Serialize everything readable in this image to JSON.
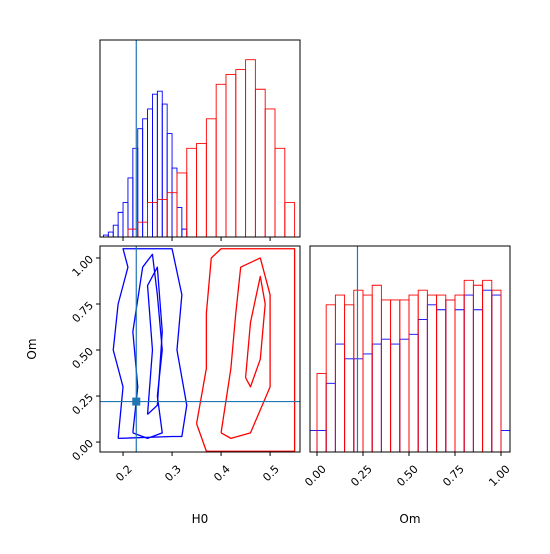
{
  "chart_data": [
    {
      "type": "histogram",
      "xlim": [
        0.153,
        0.561
      ],
      "ylim": [
        0,
        200
      ],
      "xticks": [
        0.2,
        0.3,
        0.4,
        0.5
      ],
      "truth": 0.227,
      "truth_color": "#1f77b4",
      "series": [
        {
          "color": "#0000ff",
          "bins": [
            0.16,
            0.17,
            0.18,
            0.19,
            0.2,
            0.21,
            0.22,
            0.23,
            0.24,
            0.25,
            0.26,
            0.27,
            0.28,
            0.29,
            0.3,
            0.31,
            0.32,
            0.33
          ],
          "values": [
            2,
            5,
            12,
            25,
            35,
            60,
            90,
            110,
            120,
            130,
            145,
            148,
            135,
            105,
            70,
            30,
            8
          ]
        },
        {
          "color": "#ff0000",
          "bins": [
            0.21,
            0.23,
            0.25,
            0.27,
            0.29,
            0.31,
            0.33,
            0.35,
            0.37,
            0.39,
            0.41,
            0.43,
            0.45,
            0.47,
            0.49,
            0.51,
            0.53,
            0.55
          ],
          "values": [
            8,
            15,
            35,
            38,
            45,
            65,
            90,
            95,
            120,
            155,
            165,
            170,
            180,
            150,
            130,
            90,
            35
          ]
        }
      ]
    },
    {
      "type": "contour",
      "xlabel": "H0",
      "ylabel": "Om",
      "xlim": [
        0.153,
        0.561
      ],
      "ylim": [
        -0.054,
        1.065
      ],
      "xticks": [
        0.2,
        0.3,
        0.4,
        0.5
      ],
      "yticks": [
        {
          "value": 0,
          "label": "0.00"
        },
        {
          "value": 0.25,
          "label": "0.25"
        },
        {
          "value": 0.5,
          "label": "0.50"
        },
        {
          "value": 0.75,
          "label": "0.75"
        },
        {
          "value": 1,
          "label": "1.00"
        }
      ],
      "truth_x": 0.227,
      "truth_y": 0.22,
      "truth_color": "#1f77b4",
      "contours": [
        {
          "color": "#0000ff",
          "x": [
            0.19,
            0.2,
            0.18,
            0.19,
            0.21,
            0.2,
            0.23,
            0.3,
            0.32,
            0.31,
            0.33,
            0.32,
            0.3,
            0.19
          ],
          "values": [
            0.02,
            0.3,
            0.5,
            0.75,
            0.95,
            1.05,
            1.05,
            1.05,
            0.8,
            0.5,
            0.2,
            0.03,
            0.03,
            0.02
          ]
        },
        {
          "color": "#0000ff",
          "x": [
            0.22,
            0.23,
            0.22,
            0.24,
            0.26,
            0.27,
            0.28,
            0.27,
            0.28,
            0.25,
            0.22
          ],
          "values": [
            0.05,
            0.3,
            0.6,
            0.95,
            1.02,
            0.8,
            0.5,
            0.25,
            0.05,
            0.02,
            0.05
          ]
        },
        {
          "color": "#0000ff",
          "x": [
            0.25,
            0.26,
            0.25,
            0.27,
            0.28,
            0.27,
            0.25
          ],
          "values": [
            0.15,
            0.5,
            0.85,
            0.95,
            0.6,
            0.2,
            0.15
          ]
        },
        {
          "color": "#ff0000",
          "x": [
            0.35,
            0.37,
            0.37,
            0.38,
            0.4,
            0.55,
            0.55,
            0.47,
            0.37,
            0.35
          ],
          "values": [
            0.1,
            0.4,
            0.7,
            1.0,
            1.05,
            1.05,
            -0.05,
            -0.05,
            -0.05,
            0.1
          ]
        },
        {
          "color": "#ff0000",
          "x": [
            0.4,
            0.42,
            0.43,
            0.44,
            0.48,
            0.5,
            0.5,
            0.46,
            0.42,
            0.4
          ],
          "values": [
            0.05,
            0.4,
            0.7,
            0.95,
            1.0,
            0.8,
            0.3,
            0.05,
            0.02,
            0.05
          ]
        },
        {
          "color": "#ff0000",
          "x": [
            0.45,
            0.46,
            0.48,
            0.49,
            0.48,
            0.46,
            0.45
          ],
          "values": [
            0.35,
            0.65,
            0.9,
            0.75,
            0.45,
            0.3,
            0.35
          ]
        }
      ]
    },
    {
      "type": "histogram",
      "xlabel": "Om",
      "xlim": [
        -0.038,
        1.049
      ],
      "ylim": [
        0,
        210
      ],
      "xticks": [
        {
          "value": 0,
          "label": "0.00"
        },
        {
          "value": 0.25,
          "label": "0.25"
        },
        {
          "value": 0.5,
          "label": "0.50"
        },
        {
          "value": 0.75,
          "label": "0.75"
        },
        {
          "value": 1,
          "label": "1.00"
        }
      ],
      "truth": 0.22,
      "truth_color": "#1f77b4",
      "series": [
        {
          "color": "#0000ff",
          "bins": [
            -0.038,
            0.0,
            0.05,
            0.1,
            0.15,
            0.2,
            0.25,
            0.3,
            0.35,
            0.4,
            0.45,
            0.5,
            0.55,
            0.6,
            0.65,
            0.7,
            0.75,
            0.8,
            0.85,
            0.9,
            0.95,
            1.0,
            1.049
          ],
          "values": [
            22,
            22,
            70,
            110,
            95,
            95,
            100,
            110,
            115,
            110,
            115,
            120,
            135,
            150,
            145,
            155,
            145,
            160,
            145,
            165,
            160,
            22
          ]
        },
        {
          "color": "#ff0000",
          "bins": [
            0.0,
            0.05,
            0.1,
            0.15,
            0.2,
            0.25,
            0.3,
            0.35,
            0.4,
            0.45,
            0.5,
            0.55,
            0.6,
            0.65,
            0.7,
            0.75,
            0.8,
            0.85,
            0.9,
            0.95,
            1.0
          ],
          "values": [
            80,
            150,
            160,
            150,
            165,
            160,
            170,
            155,
            155,
            155,
            160,
            165,
            160,
            160,
            155,
            160,
            175,
            170,
            175,
            165
          ]
        }
      ]
    }
  ]
}
